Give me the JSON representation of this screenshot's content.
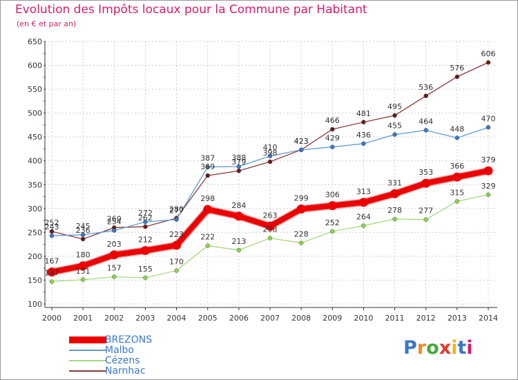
{
  "header": {
    "title": "Evolution des Impôts locaux pour la Commune par Habitant",
    "subtitle": "(en € et par an)"
  },
  "logo": {
    "letters": [
      "P",
      "r",
      "o",
      "x",
      "i",
      "t",
      "i"
    ],
    "colors": [
      "#3a78c8",
      "#f08a1c",
      "#46a83a",
      "#e23a2a",
      "#f0b41c",
      "#3a78c8",
      "#d11e6e"
    ]
  },
  "colors": {
    "title": "#d11e6e",
    "axis_text": "#333333",
    "grid": "#cccccc",
    "tick_mark": "#cc3333"
  },
  "chart_data": {
    "type": "line",
    "title": "Evolution des Impôts locaux pour la Commune par Habitant",
    "subtitle": "(en € et par an)",
    "xlabel": "",
    "ylabel": "",
    "x": [
      "2000",
      "2001",
      "2002",
      "2003",
      "2004",
      "2005",
      "2006",
      "2007",
      "2008",
      "2009",
      "2010",
      "2011",
      "2012",
      "2013",
      "2014"
    ],
    "ylim": [
      100,
      650
    ],
    "yticks": [
      100,
      150,
      200,
      250,
      300,
      350,
      400,
      450,
      500,
      550,
      600,
      650
    ],
    "grid": true,
    "legend_position": "bottom-left",
    "series": [
      {
        "name": "BREZONS",
        "color": "#ee0000",
        "marker": "#ee0000",
        "emphasis": true,
        "values": [
          167,
          180,
          203,
          212,
          223,
          298,
          284,
          263,
          299,
          306,
          313,
          331,
          353,
          366,
          379
        ]
      },
      {
        "name": "Malbo",
        "color": "#5a9bd5",
        "marker": "#3a78c8",
        "values": [
          243,
          245,
          254,
          272,
          277,
          387,
          388,
          410,
          423,
          429,
          436,
          455,
          464,
          448,
          470
        ]
      },
      {
        "name": "Cézens",
        "color": "#a6d87e",
        "marker": "#8cd44a",
        "values": [
          147,
          151,
          157,
          155,
          170,
          222,
          213,
          238,
          228,
          252,
          264,
          278,
          277,
          315,
          329
        ]
      },
      {
        "name": "Narnhac",
        "color": "#8b3a3a",
        "marker": "#6b1a1a",
        "values": [
          252,
          236,
          260,
          262,
          280,
          369,
          379,
          398,
          423,
          466,
          481,
          495,
          536,
          576,
          606
        ]
      }
    ]
  }
}
